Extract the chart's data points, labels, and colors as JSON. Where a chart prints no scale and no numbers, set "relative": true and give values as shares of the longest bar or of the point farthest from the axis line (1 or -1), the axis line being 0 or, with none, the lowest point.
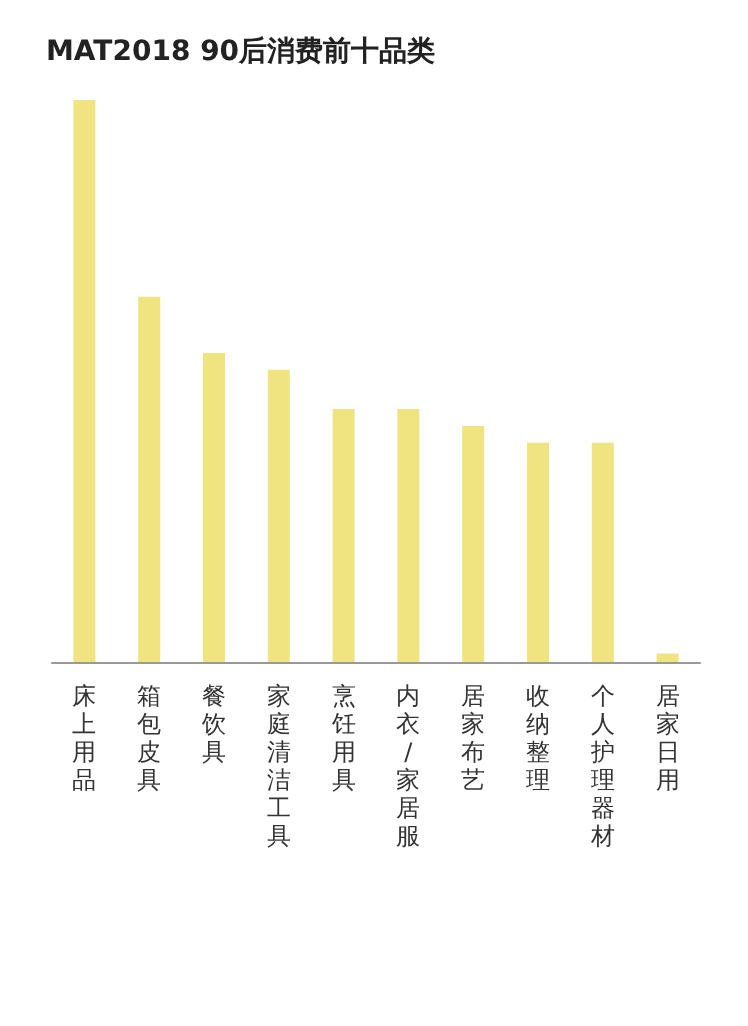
{
  "chart_data": {
    "type": "bar",
    "title": "MAT2018 90后消费前十品类",
    "relative": true,
    "categories": [
      "床上用品",
      "箱包皮具",
      "餐饮具",
      "家庭清洁工具",
      "烹饪用具",
      "内衣/家居服",
      "居家布艺",
      "收纳整理",
      "个人护理器材",
      "居家日用"
    ],
    "values": [
      1,
      0.65,
      0.55,
      0.52,
      0.45,
      0.45,
      0.42,
      0.39,
      0.39,
      0.015
    ],
    "color": "#efe47f"
  }
}
